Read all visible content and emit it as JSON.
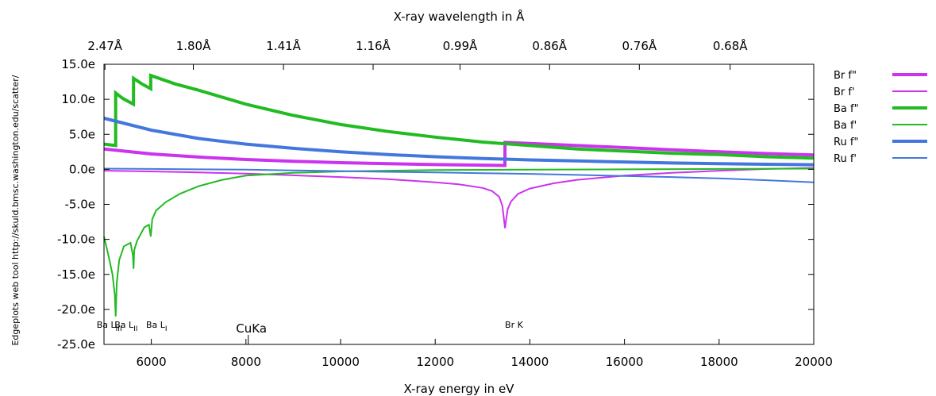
{
  "chart_data": {
    "type": "line",
    "xlabel": "X-ray energy in eV",
    "x2label": "X-ray wavelength in Å",
    "ylabel": "",
    "side_note": "Edgeplots web tool http://skuld.bmsc.washington.edu/scatter/",
    "xlim": [
      5000,
      20000
    ],
    "ylim": [
      -25,
      15
    ],
    "x_ticks": [
      {
        "value": 6000,
        "label": "6000"
      },
      {
        "value": 8000,
        "label": "8000"
      },
      {
        "value": 10000,
        "label": "10000"
      },
      {
        "value": 12000,
        "label": "12000"
      },
      {
        "value": 14000,
        "label": "14000"
      },
      {
        "value": 16000,
        "label": "16000"
      },
      {
        "value": 18000,
        "label": "18000"
      },
      {
        "value": 20000,
        "label": "20000"
      }
    ],
    "x2_ticks": [
      {
        "value": 5020,
        "label": "2.47Å"
      },
      {
        "value": 6888,
        "label": "1.80Å"
      },
      {
        "value": 8794,
        "label": "1.41Å"
      },
      {
        "value": 10688,
        "label": "1.16Å"
      },
      {
        "value": 12524,
        "label": "0.99Å"
      },
      {
        "value": 14417,
        "label": "0.86Å"
      },
      {
        "value": 16314,
        "label": "0.76Å"
      },
      {
        "value": 18233,
        "label": "0.68Å"
      }
    ],
    "y_ticks": [
      {
        "value": 15,
        "label": "15.0e"
      },
      {
        "value": 10,
        "label": "10.0e"
      },
      {
        "value": 5,
        "label": "5.0e"
      },
      {
        "value": 0,
        "label": "0.0e"
      },
      {
        "value": -5,
        "label": "-5.0e"
      },
      {
        "value": -10,
        "label": "-10.0e"
      },
      {
        "value": -15,
        "label": "-15.0e"
      },
      {
        "value": -20,
        "label": "-20.0e"
      },
      {
        "value": -25,
        "label": "-25.0e"
      }
    ],
    "edges": [
      {
        "energy": 5247,
        "label": "Ba L",
        "sub": "III",
        "offset": -24
      },
      {
        "energy": 5624,
        "label": "Ba L",
        "sub": "II",
        "offset": -24
      },
      {
        "energy": 5989,
        "label": "Ba L",
        "sub": "I",
        "offset": -6
      },
      {
        "energy": 8048,
        "label": "CuKa",
        "sub": "",
        "offset": 0,
        "big": true
      },
      {
        "energy": 13474,
        "label": "Br K",
        "sub": "",
        "offset": 0
      }
    ],
    "legend_position": "right",
    "series": [
      {
        "name": "Br f\"",
        "color": "#cc33ee",
        "width": 4,
        "x": [
          5000,
          6000,
          7000,
          8000,
          9000,
          10000,
          11000,
          12000,
          13000,
          13473,
          13474,
          14000,
          15000,
          16000,
          17000,
          18000,
          19000,
          20000
        ],
        "y": [
          2.9,
          2.2,
          1.75,
          1.4,
          1.15,
          0.95,
          0.8,
          0.68,
          0.6,
          0.55,
          3.85,
          3.7,
          3.4,
          3.1,
          2.8,
          2.5,
          2.25,
          2.05
        ]
      },
      {
        "name": "Br f'",
        "color": "#cc33ee",
        "width": 2,
        "x": [
          5000,
          6000,
          7000,
          8000,
          9000,
          10000,
          11000,
          12000,
          12500,
          13000,
          13200,
          13350,
          13420,
          13474,
          13530,
          13600,
          13750,
          14000,
          14500,
          15000,
          16000,
          17000,
          18000,
          19000,
          20000
        ],
        "y": [
          -0.2,
          -0.3,
          -0.45,
          -0.6,
          -0.85,
          -1.1,
          -1.4,
          -1.85,
          -2.15,
          -2.65,
          -3.1,
          -3.9,
          -5.2,
          -8.4,
          -5.7,
          -4.6,
          -3.5,
          -2.75,
          -2.0,
          -1.5,
          -0.9,
          -0.5,
          -0.2,
          0.05,
          0.2
        ]
      },
      {
        "name": "Ba f\"",
        "color": "#22bb22",
        "width": 4,
        "x": [
          5000,
          5246,
          5247,
          5400,
          5623,
          5624,
          5800,
          5988,
          5989,
          6500,
          7000,
          8000,
          9000,
          10000,
          11000,
          12000,
          13000,
          14000,
          15000,
          16000,
          17000,
          18000,
          19000,
          20000
        ],
        "y": [
          3.6,
          3.4,
          10.9,
          10.1,
          9.3,
          13.0,
          12.2,
          11.5,
          13.4,
          12.2,
          11.3,
          9.3,
          7.7,
          6.4,
          5.4,
          4.6,
          3.9,
          3.4,
          2.9,
          2.6,
          2.3,
          2.1,
          1.8,
          1.6
        ]
      },
      {
        "name": "Ba f'",
        "color": "#22bb22",
        "width": 2,
        "x": [
          5000,
          5100,
          5180,
          5230,
          5247,
          5270,
          5320,
          5420,
          5560,
          5610,
          5624,
          5640,
          5700,
          5850,
          5950,
          5989,
          6020,
          6100,
          6300,
          6600,
          7000,
          7500,
          8000,
          9000,
          10000,
          11000,
          12000,
          14000,
          16000,
          18000,
          20000
        ],
        "y": [
          -9.6,
          -12.5,
          -15.0,
          -18.0,
          -21.0,
          -16.2,
          -13.0,
          -11.0,
          -10.5,
          -12.3,
          -14.2,
          -11.5,
          -10.2,
          -8.3,
          -7.9,
          -9.6,
          -7.1,
          -5.9,
          -4.7,
          -3.5,
          -2.4,
          -1.5,
          -0.9,
          -0.5,
          -0.3,
          -0.2,
          -0.1,
          -0.05,
          0.0,
          0.05,
          0.1
        ]
      },
      {
        "name": "Ru f\"",
        "color": "#4477dd",
        "width": 4,
        "x": [
          5000,
          6000,
          7000,
          8000,
          9000,
          10000,
          11000,
          12000,
          13000,
          14000,
          15000,
          16000,
          17000,
          18000,
          19000,
          20000
        ],
        "y": [
          7.3,
          5.6,
          4.4,
          3.6,
          3.0,
          2.5,
          2.1,
          1.8,
          1.55,
          1.35,
          1.2,
          1.05,
          0.9,
          0.8,
          0.72,
          0.65
        ]
      },
      {
        "name": "Ru f'",
        "color": "#4477dd",
        "width": 2,
        "x": [
          5000,
          6000,
          7000,
          8000,
          9000,
          10000,
          11000,
          12000,
          13000,
          14000,
          15000,
          16000,
          17000,
          18000,
          19000,
          20000
        ],
        "y": [
          0.1,
          0.05,
          0.0,
          -0.05,
          -0.15,
          -0.25,
          -0.35,
          -0.45,
          -0.55,
          -0.65,
          -0.8,
          -0.95,
          -1.1,
          -1.3,
          -1.55,
          -1.85
        ]
      }
    ]
  }
}
